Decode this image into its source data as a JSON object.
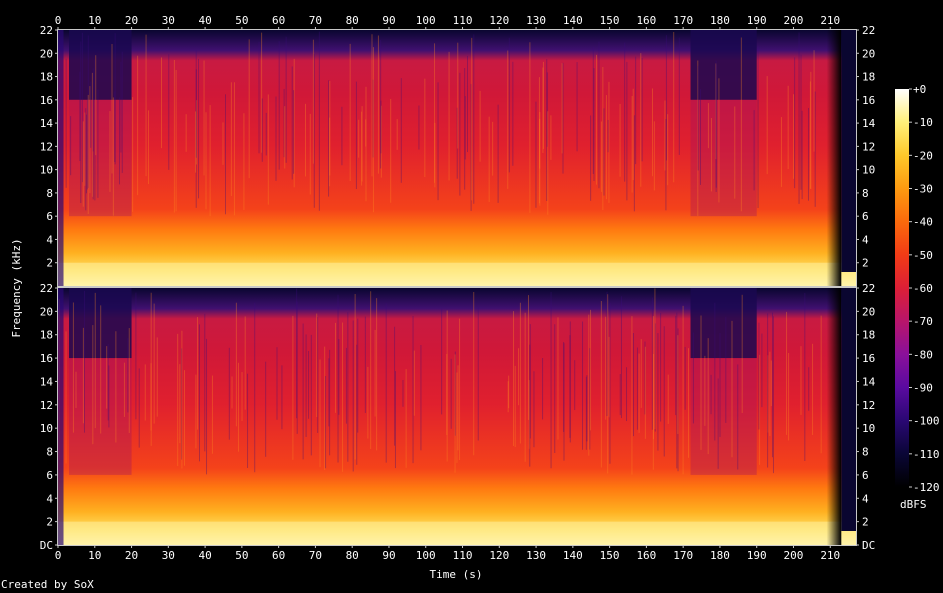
{
  "chart_data": {
    "type": "heatmap",
    "subtype": "spectrogram",
    "title": "",
    "xlabel": "Time (s)",
    "ylabel": "Frequency (kHz)",
    "x_ticks": [
      "0",
      "10",
      "20",
      "30",
      "40",
      "50",
      "60",
      "70",
      "80",
      "90",
      "100",
      "110",
      "120",
      "130",
      "140",
      "150",
      "160",
      "170",
      "180",
      "190",
      "200",
      "210"
    ],
    "y_ticks": [
      "DC",
      "2",
      "4",
      "6",
      "8",
      "10",
      "12",
      "14",
      "16",
      "18",
      "20",
      "22"
    ],
    "xlim": [
      0,
      217
    ],
    "ylim_khz": [
      0,
      22
    ],
    "channels": [
      {
        "channel": 1
      },
      {
        "channel": 2
      }
    ],
    "colorbar": {
      "label": "dBFS",
      "ticks": [
        "+0",
        "-10",
        "-20",
        "-30",
        "-40",
        "-50",
        "-60",
        "-70",
        "-80",
        "-90",
        "-100",
        "-110",
        "-120"
      ],
      "range": [
        -120,
        0
      ],
      "colors": [
        "#000000",
        "#0a0636",
        "#2a0873",
        "#5a0aa0",
        "#8a109a",
        "#b8156a",
        "#dc1f36",
        "#f23b16",
        "#fb6a0c",
        "#fd9a10",
        "#fec82a",
        "#fff07a",
        "#ffffff"
      ]
    },
    "features": {
      "fade_in_end_s": 1.5,
      "cutoff_16k_segments_s": [
        [
          3,
          20
        ],
        [
          172,
          190
        ]
      ],
      "bright_lowband_khz": 2,
      "fade_out_start_s": 209,
      "fade_out_end_s": 213
    },
    "grid": false
  },
  "footer": {
    "credit": "Created by SoX"
  }
}
